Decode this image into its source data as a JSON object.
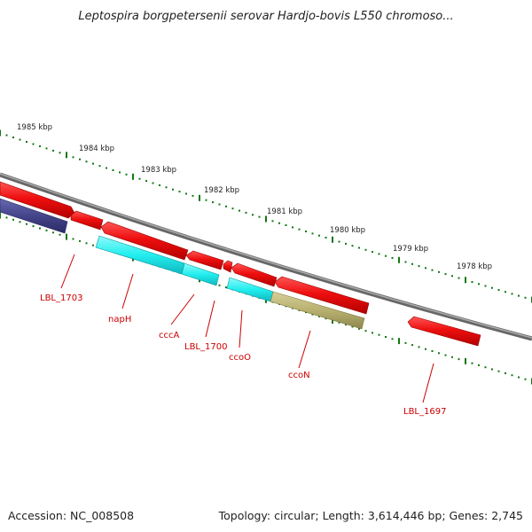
{
  "title": "Leptospira borgpetersenii serovar Hardjo-bovis L550 chromoso...",
  "ruler_labels": [
    "1985 kbp",
    "1984 kbp",
    "1983 kbp",
    "1982 kbp",
    "1981 kbp",
    "1980 kbp",
    "1979 kbp",
    "1978 kbp"
  ],
  "gene_labels": [
    "LBL_1703",
    "napH",
    "cccA",
    "LBL_1700",
    "ccoO",
    "ccoN",
    "LBL_1697"
  ],
  "footer": {
    "accession": "Accession: NC_008508",
    "stats": "Topology: circular; Length: 3,614,446 bp; Genes: 2,745"
  },
  "colors": {
    "gene_red": "#ee1111",
    "gene_cyan": "#22eeee",
    "gene_olive": "#b8b070",
    "gene_navy": "#44448a",
    "backbone": "#888888",
    "tick_green": "#117711",
    "label_red": "#cc0000"
  }
}
